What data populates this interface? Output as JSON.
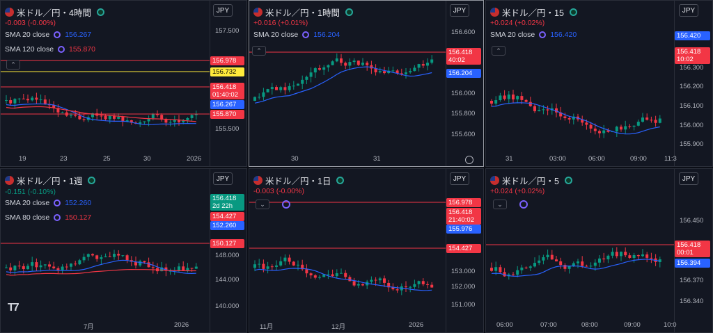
{
  "panels": [
    {
      "id": "p1",
      "title": "米ドル／円・4時間",
      "currency": "JPY",
      "change": "-0.003 (-0.00%)",
      "sma": [
        {
          "label": "SMA 20 close",
          "value": "156.267",
          "color": "#2962ff"
        },
        {
          "label": "SMA 120 close",
          "value": "155.870",
          "color": "#f23645"
        }
      ],
      "price_labels": [
        {
          "text": "156.978",
          "bg": "#f23645"
        },
        {
          "text": "156.732",
          "bg": "#ffeb3b",
          "fg": "#000"
        },
        {
          "text": "156.418\n01:40:02",
          "bg": "#f23645"
        },
        {
          "text": "156.267",
          "bg": "#2962ff"
        },
        {
          "text": "155.870",
          "bg": "#f23645"
        }
      ],
      "yticks": [
        "157.500",
        "155.500"
      ],
      "xticks": [
        "19",
        "23",
        "25",
        "30",
        "2026"
      ]
    },
    {
      "id": "p2",
      "title": "米ドル／円・1時間",
      "currency": "JPY",
      "change": "+0.016 (+0.01%)",
      "sma": [
        {
          "label": "SMA 20 close",
          "value": "156.204",
          "color": "#2962ff"
        }
      ],
      "price_labels": [
        {
          "text": "156.418\n40:02",
          "bg": "#f23645"
        },
        {
          "text": "156.204",
          "bg": "#2962ff"
        }
      ],
      "yticks": [
        "156.600",
        "156.000",
        "155.800",
        "155.600"
      ],
      "xticks": [
        "30",
        "31"
      ]
    },
    {
      "id": "p3",
      "title": "米ドル／円・15",
      "currency": "JPY",
      "change": "+0.024 (+0.02%)",
      "sma": [
        {
          "label": "SMA 20 close",
          "value": "156.420",
          "color": "#2962ff"
        }
      ],
      "price_labels": [
        {
          "text": "156.420",
          "bg": "#2962ff"
        },
        {
          "text": "156.418\n10:02",
          "bg": "#f23645"
        }
      ],
      "yticks": [
        "156.300",
        "156.200",
        "156.100",
        "156.000",
        "155.900"
      ],
      "xticks": [
        "31",
        "03:00",
        "06:00",
        "09:00",
        "11:3"
      ]
    },
    {
      "id": "p4",
      "title": "米ドル／円・1週",
      "currency": "JPY",
      "change": "-0.151 (-0.10%)",
      "sma": [
        {
          "label": "SMA 20 close",
          "value": "152.260",
          "color": "#2962ff"
        },
        {
          "label": "SMA 80 close",
          "value": "150.127",
          "color": "#f23645"
        }
      ],
      "price_labels": [
        {
          "text": "156.418\n2d 22h",
          "bg": "#089981"
        },
        {
          "text": "154.427",
          "bg": "#f23645"
        },
        {
          "text": "152.260",
          "bg": "#2962ff"
        },
        {
          "text": "150.127",
          "bg": "#f23645"
        }
      ],
      "yticks": [
        "148.000",
        "144.000",
        "140.000"
      ],
      "xticks": [
        "7月",
        "2026"
      ]
    },
    {
      "id": "p5",
      "title": "米ドル／円・1日",
      "currency": "JPY",
      "change": "-0.003 (-0.00%)",
      "sma": [],
      "price_labels": [
        {
          "text": "156.978",
          "bg": "#f23645"
        },
        {
          "text": "156.418\n21:40:02",
          "bg": "#f23645"
        },
        {
          "text": "155.976",
          "bg": "#2962ff"
        },
        {
          "text": "154.427",
          "bg": "#f23645"
        }
      ],
      "yticks": [
        "153.000",
        "152.000",
        "151.000"
      ],
      "xticks": [
        "11月",
        "12月",
        "2026"
      ]
    },
    {
      "id": "p6",
      "title": "米ドル／円・5",
      "currency": "JPY",
      "change": "+0.024 (+0.02%)",
      "sma": [],
      "price_labels": [
        {
          "text": "156.418\n00:01",
          "bg": "#f23645"
        },
        {
          "text": "156.394",
          "bg": "#2962ff"
        }
      ],
      "yticks": [
        "156.450",
        "156.370",
        "156.340"
      ],
      "xticks": [
        "06:00",
        "07:00",
        "08:00",
        "09:00",
        "10:0"
      ]
    }
  ],
  "colors": {
    "up": "#089981",
    "down": "#f23645",
    "sma_fast": "#2962ff",
    "sma_slow": "#f23645",
    "bg": "#131722"
  },
  "icons": [
    "flag-us-icon",
    "live-dot-icon",
    "settings-gear-icon",
    "collapse-chevron-icon",
    "tradingview-logo-icon"
  ]
}
